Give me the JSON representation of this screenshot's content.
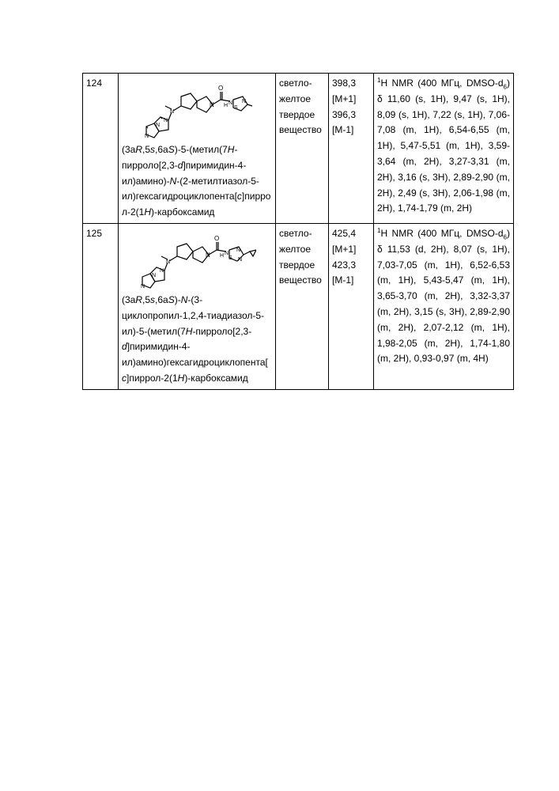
{
  "rows": [
    {
      "id": "124",
      "name_html": "(3a<span class='ital'>R</span>,5<span class='ital'>s</span>,6a<span class='ital'>S</span>)-5-(метил(7<span class='ital'>H</span>-пирроло[2,3-<span class='ital'>d</span>]пиримидин-4-ил)амино)-<span class='ital'>N</span>-(2-метилтиазол-5-ил)гексагидроциклопента[<span class='ital'>c</span>]пиррол-2(1<span class='ital'>H</span>)-карбоксамид",
      "appearance": "светло-желтое твердое вещество",
      "mass": "398,3 [M+1] 396,3 [M-1]",
      "nmr_html": "<sup>1</sup>H NMR (400 МГц, DMSO-d<sub>6</sub>) δ 11,60 (s, 1H), 9,47 (s, 1H), 8,09 (s, 1H), 7,22 (s, 1H), 7,06-7,08 (m, 1H), 6,54-6,55 (m, 1H), 5,47-5,51 (m, 1H), 3,59-3,64 (m, 2H), 3,27-3,31 (m, 2H), 3,16 (s, 3H), 2,89-2,90 (m, 2H), 2,49 (s, 3H), 2,06-1,98 (m, 2H), 1,74-1,79 (m, 2H)",
      "struct_svg_width": 140,
      "struct_svg_height": 78
    },
    {
      "id": "125",
      "name_html": "(3a<span class='ital'>R</span>,5<span class='ital'>s</span>,6a<span class='ital'>S</span>)-<span class='ital'>N</span>-(3-циклопропил-1,2,4-тиадиазол-5-ил)-5-(метил(7<span class='ital'>H</span>-пирроло[2,3-<span class='ital'>d</span>]пиримидин-4-ил)амино)гексагидроциклопента[<span class='ital'>c</span>]пиррол-2(1<span class='ital'>H</span>)-карбоксамид",
      "appearance": "светло-желтое твердое вещество",
      "mass": "425,4 [M+1] 423,3 [M-1]",
      "nmr_html": "<sup>1</sup>H NMR (400 МГц, DMSO-d<sub>6</sub>) δ 11,53 (d, 2H), 8,07 (s, 1H), 7,03-7,05 (m, 1H), 6,52-6,53 (m, 1H), 5,43-5,47 (m, 1H), 3,65-3,70 (m, 2H), 3,32-3,37 (m, 2H), 3,15 (s, 3H), 2,89-2,90 (m, 2H), 2,07-2,12 (m, 1H), 1,98-2,05 (m, 2H), 1,74-1,80 (m, 2H), 0,93-0,97 (m, 4H)",
      "struct_svg_width": 150,
      "struct_svg_height": 78
    }
  ],
  "colors": {
    "stroke": "#000000",
    "bg": "#ffffff"
  }
}
